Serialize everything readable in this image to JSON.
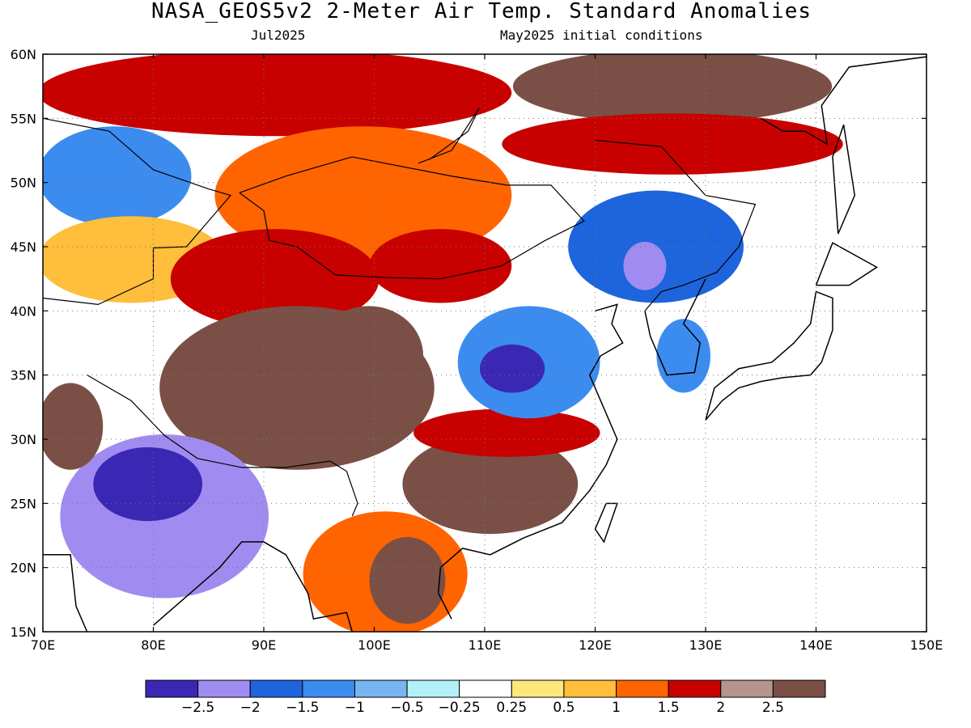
{
  "title": "NASA_GEOS5v2 2-Meter Air Temp. Standard Anomalies",
  "subtitle_left": "Jul2025",
  "subtitle_right": "May2025 initial conditions",
  "map": {
    "lon_range": [
      70,
      150
    ],
    "lat_range": [
      15,
      60
    ],
    "lon_ticks": [
      "70E",
      "80E",
      "90E",
      "100E",
      "110E",
      "120E",
      "130E",
      "140E",
      "150E"
    ],
    "lat_ticks": [
      "15N",
      "20N",
      "25N",
      "30N",
      "35N",
      "40N",
      "45N",
      "50N",
      "55N",
      "60N"
    ],
    "grid": "dotted",
    "features": [
      "coastlines",
      "country-borders"
    ]
  },
  "legend": {
    "colors": [
      "#3a28b4",
      "#a08cf0",
      "#1e64dc",
      "#3c8cf0",
      "#78b4f0",
      "#b4f0fa",
      "#ffffff",
      "#ffe87a",
      "#ffbe3c",
      "#ff6400",
      "#c80000",
      "#b4968c",
      "#7a5046"
    ],
    "labels": [
      "-2.5",
      "-2",
      "-1.5",
      "-1",
      "-0.5",
      "-0.25",
      "0.25",
      "0.5",
      "1",
      "1.5",
      "2",
      "2.5"
    ]
  },
  "regions": [
    {
      "name": "siberia-north-warm",
      "lon": [
        70,
        112
      ],
      "lat": [
        54,
        60
      ],
      "level": 10
    },
    {
      "name": "russia-far-east-very-warm",
      "lon": [
        113,
        141
      ],
      "lat": [
        55,
        60
      ],
      "level": 12
    },
    {
      "name": "amur-warm",
      "lon": [
        112,
        142
      ],
      "lat": [
        51,
        55
      ],
      "level": 10
    },
    {
      "name": "kazakhstan-cool",
      "lon": [
        70,
        83
      ],
      "lat": [
        47,
        54
      ],
      "level": 3
    },
    {
      "name": "kazakhstan-mixed",
      "lon": [
        70,
        86
      ],
      "lat": [
        41,
        47
      ],
      "level": 8
    },
    {
      "name": "mongolia-warm",
      "lon": [
        86,
        112
      ],
      "lat": [
        44,
        54
      ],
      "level": 9
    },
    {
      "name": "xinjiang-warm",
      "lon": [
        82,
        100
      ],
      "lat": [
        39,
        46
      ],
      "level": 10
    },
    {
      "name": "gobi-warm",
      "lon": [
        100,
        112
      ],
      "lat": [
        41,
        46
      ],
      "level": 10
    },
    {
      "name": "tibet-very-warm",
      "lon": [
        81,
        105
      ],
      "lat": [
        28,
        40
      ],
      "level": 12
    },
    {
      "name": "qinghai-very-warm",
      "lon": [
        95,
        104
      ],
      "lat": [
        33,
        40
      ],
      "level": 12
    },
    {
      "name": "sw-china-very-warm",
      "lon": [
        103,
        118
      ],
      "lat": [
        23,
        30
      ],
      "level": 12
    },
    {
      "name": "yangtze-warm",
      "lon": [
        104,
        120
      ],
      "lat": [
        29,
        32
      ],
      "level": 10
    },
    {
      "name": "north-china-cool",
      "lon": [
        108,
        120
      ],
      "lat": [
        32,
        40
      ],
      "level": 3
    },
    {
      "name": "north-china-core",
      "lon": [
        110,
        115
      ],
      "lat": [
        34,
        37
      ],
      "level": 0
    },
    {
      "name": "manchuria-cool",
      "lon": [
        118,
        133
      ],
      "lat": [
        41,
        49
      ],
      "level": 2
    },
    {
      "name": "manchuria-core",
      "lon": [
        123,
        126
      ],
      "lat": [
        42,
        45
      ],
      "level": 1
    },
    {
      "name": "india-cool",
      "lon": [
        72,
        90
      ],
      "lat": [
        18,
        30
      ],
      "level": 1
    },
    {
      "name": "india-core",
      "lon": [
        75,
        84
      ],
      "lat": [
        24,
        29
      ],
      "level": 0
    },
    {
      "name": "pakistan-warm",
      "lon": [
        70,
        75
      ],
      "lat": [
        28,
        34
      ],
      "level": 12
    },
    {
      "name": "indochina-warm",
      "lon": [
        94,
        108
      ],
      "lat": [
        15,
        24
      ],
      "level": 9
    },
    {
      "name": "indochina-core",
      "lon": [
        100,
        106
      ],
      "lat": [
        16,
        22
      ],
      "level": 12
    },
    {
      "name": "korea-cool",
      "lon": [
        126,
        130
      ],
      "lat": [
        34,
        39
      ],
      "level": 3
    }
  ]
}
